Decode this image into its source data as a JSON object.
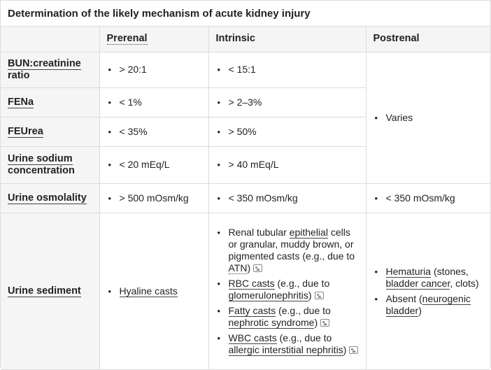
{
  "title": "Determination of the likely mechanism of acute kidney injury",
  "columns": {
    "prerenal": "Prerenal",
    "intrinsic": "Intrinsic",
    "postrenal": "Postrenal"
  },
  "rows": {
    "bun": {
      "label_a": "BUN:creatinine",
      "label_b": "ratio",
      "prerenal": "> 20:1",
      "intrinsic": "< 15:1"
    },
    "fena": {
      "label": "FENa",
      "prerenal": "< 1%",
      "intrinsic": "> 2–3%"
    },
    "feurea": {
      "label": "FEUrea",
      "prerenal": "< 35%",
      "intrinsic": "> 50%"
    },
    "urine_sodium": {
      "label_a": "Urine sodium",
      "label_b": "concentration",
      "prerenal": "< 20 mEq/L",
      "intrinsic": "> 40 mEq/L"
    },
    "postrenal_shared": "Varies",
    "osmolality": {
      "label": "Urine osmolality",
      "prerenal": "> 500 mOsm/kg",
      "intrinsic": "< 350 mOsm/kg",
      "postrenal": "< 350 mOsm/kg"
    },
    "sediment": {
      "label": "Urine sediment",
      "prerenal": "Hyaline casts",
      "intrinsic": {
        "item1": {
          "p1": "Renal tubular ",
          "p2": "epithelial",
          "p3": " cells or granular, muddy brown, or pigmented casts (e.g., due to ",
          "p4": "ATN",
          "p5": ")"
        },
        "item2": {
          "p1": "RBC casts",
          "p2": " (e.g., due to ",
          "p3": "glomerulonephritis",
          "p4": ")"
        },
        "item3": {
          "p1": "Fatty casts",
          "p2": " (e.g., due to ",
          "p3": "nephrotic syndrome",
          "p4": ")"
        },
        "item4": {
          "p1": "WBC casts",
          "p2": " (e.g., due to ",
          "p3": "allergic interstitial nephritis",
          "p4": ")"
        }
      },
      "postrenal": {
        "item1": {
          "p1": "Hematuria",
          "p2": " (stones, ",
          "p3": "bladder cancer",
          "p4": ", clots)"
        },
        "item2": {
          "p1": "Absent",
          "p2": " (",
          "p3": "neurogenic bladder",
          "p4": ")"
        }
      }
    }
  },
  "icons": {
    "image": "image-icon"
  }
}
